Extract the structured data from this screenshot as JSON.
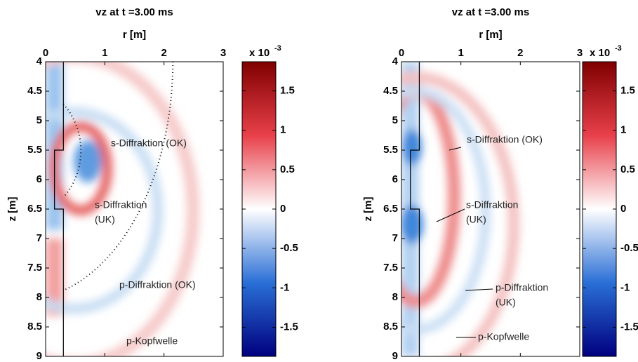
{
  "chart_data": [
    {
      "type": "heatmap",
      "title": "vz at t =3.00 ms",
      "xlabel": "r [m]",
      "ylabel": "z [m]",
      "xlim": [
        0,
        3
      ],
      "ylim": [
        4,
        9
      ],
      "yreverse": true,
      "xticks": [
        0,
        1,
        2,
        3
      ],
      "yticks": [
        4,
        4.5,
        5,
        5.5,
        6,
        6.5,
        7,
        7.5,
        8,
        8.5,
        9
      ],
      "colorbar": {
        "clim": [
          -1.87,
          1.87
        ],
        "ticks": [
          -1.5,
          -1,
          -0.5,
          0,
          0.5,
          1,
          1.5
        ],
        "multiplier": {
          "base": "x 10",
          "exponent": "-3"
        }
      },
      "annotations": [
        {
          "lines": [
            "s-Diffraktion (OK)"
          ]
        },
        {
          "lines": [
            "s-Diffraktion",
            "(UK)"
          ]
        },
        {
          "lines": [
            "p-Diffraktion (OK)"
          ]
        },
        {
          "lines": [
            "p-Kopfwelle"
          ]
        }
      ]
    },
    {
      "type": "heatmap",
      "title": "vz at t =3.00 ms",
      "xlabel": "r [m]",
      "ylabel": "z [m]",
      "xlim": [
        0,
        3
      ],
      "ylim": [
        4,
        9
      ],
      "yreverse": true,
      "xticks": [
        0,
        1,
        2,
        3
      ],
      "yticks": [
        4,
        4.5,
        5,
        5.5,
        6,
        6.5,
        7,
        7.5,
        8,
        8.5,
        9
      ],
      "colorbar": {
        "clim": [
          -1.87,
          1.87
        ],
        "ticks": [
          -1.5,
          -1,
          -0.5,
          0,
          0.5,
          1,
          1.5
        ],
        "multiplier": {
          "base": "x 10",
          "exponent": "-3"
        }
      },
      "annotations": [
        {
          "lines": [
            "s-Diffraktion (OK)"
          ]
        },
        {
          "lines": [
            "s-Diffraktion",
            "(UK)"
          ]
        },
        {
          "lines": [
            "p-Diffraktion",
            "(UK)"
          ]
        },
        {
          "lines": [
            "p-Kopfwelle"
          ]
        }
      ]
    }
  ]
}
